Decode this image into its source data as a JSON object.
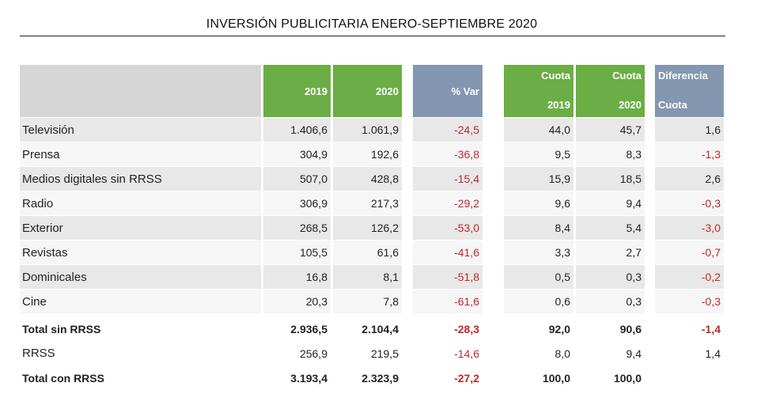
{
  "title": "INVERSIÓN PUBLICITARIA ENERO-SEPTIEMBRE 2020",
  "headers": {
    "y2019": "2019",
    "y2020": "2020",
    "var": "% Var",
    "cuota2019": [
      "Cuota",
      "2019"
    ],
    "cuota2020": [
      "Cuota",
      "2020"
    ],
    "diferencia": [
      "Diferencia",
      "Cuota"
    ]
  },
  "colors": {
    "green": "#6aae45",
    "blue": "#8497b0",
    "negative": "#c0282d",
    "stripe": "#e8e8e8"
  },
  "rows": [
    {
      "label": "Televisión",
      "v2019": "1.406,6",
      "v2020": "1.061,9",
      "var": "-24,5",
      "c2019": "44,0",
      "c2020": "45,7",
      "dif": "1,6"
    },
    {
      "label": "Prensa",
      "v2019": "304,9",
      "v2020": "192,6",
      "var": "-36,8",
      "c2019": "9,5",
      "c2020": "8,3",
      "dif": "-1,3"
    },
    {
      "label": "Medios digitales sin RRSS",
      "v2019": "507,0",
      "v2020": "428,8",
      "var": "-15,4",
      "c2019": "15,9",
      "c2020": "18,5",
      "dif": "2,6"
    },
    {
      "label": "Radio",
      "v2019": "306,9",
      "v2020": "217,3",
      "var": "-29,2",
      "c2019": "9,6",
      "c2020": "9,4",
      "dif": "-0,3"
    },
    {
      "label": "Exterior",
      "v2019": "268,5",
      "v2020": "126,2",
      "var": "-53,0",
      "c2019": "8,4",
      "c2020": "5,4",
      "dif": "-3,0"
    },
    {
      "label": "Revistas",
      "v2019": "105,5",
      "v2020": "61,6",
      "var": "-41,6",
      "c2019": "3,3",
      "c2020": "2,7",
      "dif": "-0,7"
    },
    {
      "label": "Dominicales",
      "v2019": "16,8",
      "v2020": "8,1",
      "var": "-51,8",
      "c2019": "0,5",
      "c2020": "0,3",
      "dif": "-0,2"
    },
    {
      "label": "Cine",
      "v2019": "20,3",
      "v2020": "7,8",
      "var": "-61,6",
      "c2019": "0,6",
      "c2020": "0,3",
      "dif": "-0,3"
    }
  ],
  "totals": [
    {
      "label": "Total sin RRSS",
      "v2019": "2.936,5",
      "v2020": "2.104,4",
      "var": "-28,3",
      "c2019": "92,0",
      "c2020": "90,6",
      "dif": "-1,4",
      "bold": true
    },
    {
      "label": " RRSS",
      "v2019": "256,9",
      "v2020": "219,5",
      "var": "-14,6",
      "c2019": "8,0",
      "c2020": "9,4",
      "dif": "1,4",
      "bold": false
    },
    {
      "label": "Total con RRSS",
      "v2019": "3.193,4",
      "v2020": "2.323,9",
      "var": "-27,2",
      "c2019": "100,0",
      "c2020": "100,0",
      "dif": "",
      "bold": true
    }
  ]
}
